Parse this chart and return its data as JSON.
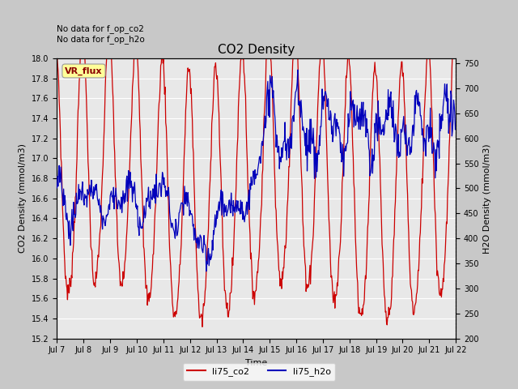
{
  "title": "CO2 Density",
  "xlabel": "Time",
  "ylabel_left": "CO2 Density (mmol/m3)",
  "ylabel_right": "H2O Density (mmol/m3)",
  "text_upper_left_line1": "No data for f_op_co2",
  "text_upper_left_line2": "No data for f_op_h2o",
  "annotation_label": "VR_flux",
  "annotation_color": "#8B0000",
  "annotation_bg": "#FFFF99",
  "ylim_left": [
    15.2,
    18.0
  ],
  "ylim_right": [
    200,
    760
  ],
  "yticks_left": [
    15.2,
    15.4,
    15.6,
    15.8,
    16.0,
    16.2,
    16.4,
    16.6,
    16.8,
    17.0,
    17.2,
    17.4,
    17.6,
    17.8,
    18.0
  ],
  "yticks_right": [
    200,
    250,
    300,
    350,
    400,
    450,
    500,
    550,
    600,
    650,
    700,
    750
  ],
  "xtick_labels": [
    "Jul 7",
    "Jul 8",
    "Jul 9",
    "Jul 10",
    "Jul 11",
    "Jul 12",
    "Jul 13",
    "Jul 14",
    "Jul 15",
    "Jul 16",
    "Jul 17",
    "Jul 18",
    "Jul 19",
    "Jul 20",
    "Jul 21",
    "Jul 22"
  ],
  "plot_bg_color": "#E8E8E8",
  "fig_bg_color": "#C8C8C8",
  "grid_color": "#FFFFFF",
  "line_co2_color": "#CC0000",
  "line_h2o_color": "#0000BB",
  "legend_labels": [
    "li75_co2",
    "li75_h2o"
  ],
  "legend_colors": [
    "#CC0000",
    "#0000BB"
  ]
}
